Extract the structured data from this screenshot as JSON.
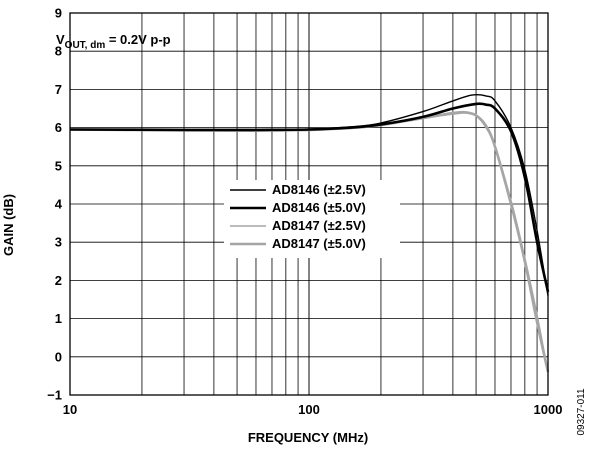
{
  "chart_data": {
    "type": "line",
    "xlabel": "FREQUENCY (MHz)",
    "ylabel": "GAIN (dB)",
    "xscale": "log",
    "xlim": [
      10,
      1000
    ],
    "ylim": [
      -1,
      9
    ],
    "x_ticks": [
      "10",
      "100",
      "1000"
    ],
    "y_ticks": [
      "−1",
      "0",
      "1",
      "2",
      "3",
      "4",
      "5",
      "6",
      "7",
      "8",
      "9"
    ],
    "grid": true,
    "annotation": {
      "main": "V",
      "sub": "OUT, dm",
      "rest": " = 0.2V p-p"
    },
    "figure_id": "09327-011",
    "legend_position": "center",
    "series": [
      {
        "name": "AD8146 (±2.5V)",
        "color": "#000000",
        "stroke_weight": "thin",
        "points": [
          [
            10,
            5.95
          ],
          [
            30,
            5.94
          ],
          [
            60,
            5.94
          ],
          [
            100,
            5.96
          ],
          [
            150,
            6.02
          ],
          [
            200,
            6.12
          ],
          [
            300,
            6.42
          ],
          [
            400,
            6.7
          ],
          [
            480,
            6.85
          ],
          [
            550,
            6.83
          ],
          [
            600,
            6.7
          ],
          [
            700,
            6.0
          ],
          [
            800,
            4.9
          ],
          [
            900,
            3.3
          ],
          [
            1000,
            1.6
          ]
        ]
      },
      {
        "name": "AD8146 (±5.0V)",
        "color": "#000000",
        "stroke_weight": "thick",
        "points": [
          [
            10,
            5.95
          ],
          [
            30,
            5.94
          ],
          [
            60,
            5.94
          ],
          [
            100,
            5.95
          ],
          [
            150,
            6.0
          ],
          [
            200,
            6.08
          ],
          [
            300,
            6.28
          ],
          [
            400,
            6.5
          ],
          [
            500,
            6.62
          ],
          [
            550,
            6.6
          ],
          [
            600,
            6.5
          ],
          [
            700,
            5.9
          ],
          [
            800,
            4.7
          ],
          [
            900,
            3.0
          ],
          [
            1000,
            1.7
          ]
        ]
      },
      {
        "name": "AD8147 (±2.5V)",
        "color": "#a6a6a6",
        "stroke_weight": "thin",
        "points": [
          [
            10,
            5.95
          ],
          [
            30,
            5.93
          ],
          [
            60,
            5.92
          ],
          [
            100,
            5.94
          ],
          [
            150,
            5.98
          ],
          [
            200,
            6.05
          ],
          [
            300,
            6.25
          ],
          [
            400,
            6.35
          ],
          [
            450,
            6.38
          ],
          [
            500,
            6.3
          ],
          [
            550,
            6.0
          ],
          [
            600,
            5.5
          ],
          [
            700,
            4.1
          ],
          [
            800,
            2.6
          ],
          [
            900,
            1.1
          ],
          [
            1000,
            -0.4
          ]
        ]
      },
      {
        "name": "AD8147 (±5.0V)",
        "color": "#a6a6a6",
        "stroke_weight": "thick",
        "points": [
          [
            10,
            5.95
          ],
          [
            30,
            5.93
          ],
          [
            60,
            5.92
          ],
          [
            100,
            5.94
          ],
          [
            150,
            5.99
          ],
          [
            200,
            6.07
          ],
          [
            300,
            6.25
          ],
          [
            400,
            6.38
          ],
          [
            450,
            6.4
          ],
          [
            500,
            6.32
          ],
          [
            550,
            6.05
          ],
          [
            600,
            5.5
          ],
          [
            700,
            4.0
          ],
          [
            800,
            2.5
          ],
          [
            900,
            0.9
          ],
          [
            1000,
            -0.4
          ]
        ]
      }
    ]
  }
}
